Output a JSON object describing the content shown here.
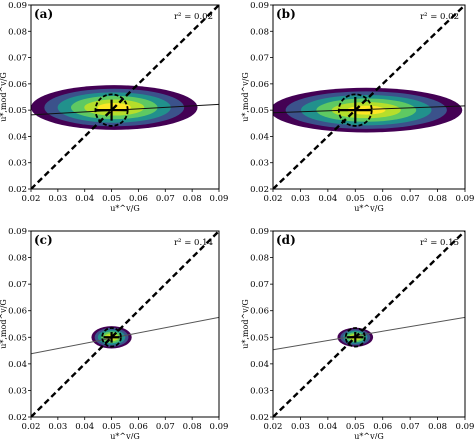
{
  "chart_data": [
    {
      "panel": "(a)",
      "type": "scatter",
      "style": "density",
      "r2_text": "r² = 0.02",
      "xlabel": "u*^v/G",
      "ylabel": "u*,mod^v/G",
      "xlim": [
        0.02,
        0.09
      ],
      "ylim": [
        0.02,
        0.09
      ],
      "xticks": [
        "0.02",
        "0.03",
        "0.04",
        "0.05",
        "0.06",
        "0.07",
        "0.08",
        "0.09"
      ],
      "yticks": [
        "0.02",
        "0.03",
        "0.04",
        "0.05",
        "0.06",
        "0.07",
        "0.08",
        "0.09"
      ],
      "density": {
        "cx": 0.051,
        "cy": 0.051,
        "sx": 0.031,
        "sy": 0.0085
      },
      "fit_line": {
        "x": [
          0.02,
          0.09
        ],
        "y": [
          0.0482,
          0.0522
        ]
      },
      "one_to_one": true,
      "mean_marker": {
        "x": 0.05,
        "y": 0.05,
        "ex": 0.006,
        "ey": 0.004,
        "circle_r": 0.006
      }
    },
    {
      "panel": "(b)",
      "type": "scatter",
      "style": "density",
      "r2_text": "r² = 0.02",
      "xlabel": "u*^v/G",
      "ylabel": "u*,mod^v/G",
      "xlim": [
        0.02,
        0.09
      ],
      "ylim": [
        0.02,
        0.09
      ],
      "xticks": [
        "0.02",
        "0.03",
        "0.04",
        "0.05",
        "0.06",
        "0.07",
        "0.08",
        "0.09"
      ],
      "yticks": [
        "0.02",
        "0.03",
        "0.04",
        "0.05",
        "0.06",
        "0.07",
        "0.08",
        "0.09"
      ],
      "density": {
        "cx": 0.054,
        "cy": 0.05,
        "sx": 0.035,
        "sy": 0.0085
      },
      "fit_line": {
        "x": [
          0.02,
          0.09
        ],
        "y": [
          0.049,
          0.0516
        ]
      },
      "one_to_one": true,
      "mean_marker": {
        "x": 0.05,
        "y": 0.05,
        "ex": 0.006,
        "ey": 0.005,
        "circle_r": 0.006
      }
    },
    {
      "panel": "(c)",
      "type": "scatter",
      "style": "density",
      "r2_text": "r² = 0.14",
      "xlabel": "u*^v/G",
      "ylabel": "u*,mod^v/G",
      "xlim": [
        0.02,
        0.09
      ],
      "ylim": [
        0.02,
        0.09
      ],
      "xticks": [
        "0.02",
        "0.03",
        "0.04",
        "0.05",
        "0.06",
        "0.07",
        "0.08",
        "0.09"
      ],
      "yticks": [
        "0.02",
        "0.03",
        "0.04",
        "0.05",
        "0.06",
        "0.07",
        "0.08",
        "0.09"
      ],
      "density": {
        "cx": 0.05,
        "cy": 0.05,
        "sx": 0.0075,
        "sy": 0.0042
      },
      "fit_line": {
        "x": [
          0.02,
          0.09
        ],
        "y": [
          0.0438,
          0.0575
        ]
      },
      "one_to_one": true,
      "mean_marker": {
        "x": 0.05,
        "y": 0.05,
        "ex": 0.003,
        "ey": 0.002,
        "circle_r": 0.0035
      }
    },
    {
      "panel": "(d)",
      "type": "scatter",
      "style": "density",
      "r2_text": "r² = 0.15",
      "xlabel": "u*^v/G",
      "ylabel": "u*,mod^v/G",
      "xlim": [
        0.02,
        0.09
      ],
      "ylim": [
        0.02,
        0.09
      ],
      "xticks": [
        "0.02",
        "0.03",
        "0.04",
        "0.05",
        "0.06",
        "0.07",
        "0.08",
        "0.09"
      ],
      "yticks": [
        "0.02",
        "0.03",
        "0.04",
        "0.05",
        "0.06",
        "0.07",
        "0.08",
        "0.09"
      ],
      "density": {
        "cx": 0.05,
        "cy": 0.05,
        "sx": 0.0065,
        "sy": 0.0036
      },
      "fit_line": {
        "x": [
          0.02,
          0.09
        ],
        "y": [
          0.0453,
          0.0575
        ]
      },
      "one_to_one": true,
      "mean_marker": {
        "x": 0.05,
        "y": 0.05,
        "ex": 0.003,
        "ey": 0.002,
        "circle_r": 0.0035
      }
    }
  ],
  "colors": {
    "density_levels": [
      "#440154",
      "#3b528b",
      "#21918c",
      "#5ec962",
      "#b5de2b",
      "#fde725"
    ],
    "line": "#000000",
    "fit_line": "#555555"
  }
}
